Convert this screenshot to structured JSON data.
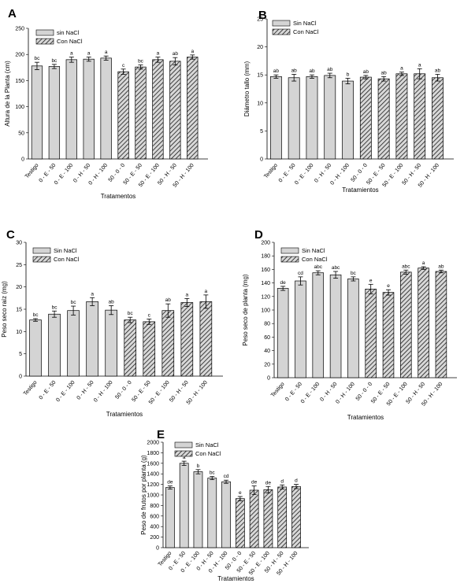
{
  "chart_data": [
    {
      "id": "A",
      "type": "bar",
      "panel_label": "A",
      "ylabel": "Altura de la Planta (cm)",
      "xlabel": "Tratamentos",
      "ylim": [
        0,
        250
      ],
      "yticks": [
        0,
        50,
        100,
        150,
        200,
        250
      ],
      "categories": [
        "Testigo",
        "0 - E - 50",
        "0 - E - 100",
        "0 - H - 50",
        "0 - H - 100",
        "50 - 0 - 0",
        "50 - E - 50",
        "50 - E - 100",
        "50 - H - 50",
        "50 - H - 100"
      ],
      "legend": [
        "sin NaCl",
        "Con NaCl"
      ],
      "series": [
        {
          "name": "sin NaCl",
          "values": [
            178,
            177,
            190,
            191,
            193,
            null,
            null,
            null,
            null,
            null
          ],
          "errors": [
            7,
            4,
            5,
            4,
            4,
            null,
            null,
            null,
            null,
            null
          ]
        },
        {
          "name": "Con NaCl",
          "values": [
            null,
            null,
            null,
            null,
            null,
            167,
            176,
            190,
            187,
            195
          ],
          "errors": [
            null,
            null,
            null,
            null,
            null,
            5,
            4,
            5,
            7,
            4
          ]
        }
      ],
      "letters": [
        "bc",
        "bc",
        "a",
        "a",
        "a",
        "c",
        "bc",
        "a",
        "ab",
        "a"
      ]
    },
    {
      "id": "B",
      "type": "bar",
      "panel_label": "B",
      "ylabel": "Diámetro tallo (mm)",
      "xlabel": "Tratamientos",
      "ylim": [
        0,
        25
      ],
      "yticks": [
        0,
        5,
        10,
        15,
        20,
        25
      ],
      "categories": [
        "Testigo",
        "0 - E - 50",
        "0 - E - 100",
        "0 - H - 50",
        "0 - H - 100",
        "50 - 0 - 0",
        "50 - E - 50",
        "50 - E - 100",
        "50 - H - 50",
        "50 - H - 100"
      ],
      "legend": [
        "Sin NaCl",
        "Con NaCl"
      ],
      "series": [
        {
          "name": "Sin NaCl",
          "values": [
            14.7,
            14.5,
            14.7,
            14.9,
            13.9,
            null,
            null,
            null,
            null,
            null
          ],
          "errors": [
            0.3,
            0.6,
            0.3,
            0.4,
            0.5,
            null,
            null,
            null,
            null,
            null
          ]
        },
        {
          "name": "Con NaCl",
          "values": [
            null,
            null,
            null,
            null,
            null,
            14.6,
            14.3,
            15.2,
            15.2,
            14.5
          ],
          "errors": [
            null,
            null,
            null,
            null,
            null,
            0.3,
            0.4,
            0.3,
            0.9,
            0.6
          ]
        }
      ],
      "letters": [
        "ab",
        "ab",
        "ab",
        "ab",
        "b",
        "ab",
        "ab",
        "a",
        "a",
        "ab"
      ]
    },
    {
      "id": "C",
      "type": "bar",
      "panel_label": "C",
      "ylabel": "Peso seco raíz (mg)",
      "xlabel": "Tratamientos",
      "ylim": [
        0,
        30
      ],
      "yticks": [
        0,
        5,
        10,
        15,
        20,
        25,
        30
      ],
      "categories": [
        "Testigo",
        "0 - E - 50",
        "0 - E - 100",
        "0 - H - 50",
        "0 - H - 100",
        "50 - 0 - 0",
        "50 - E - 50",
        "50 - E - 100",
        "50 - H - 50",
        "50 - H - 100"
      ],
      "legend": [
        "Sin NaCl",
        "Con NaCl"
      ],
      "series": [
        {
          "name": "Sin NaCl",
          "values": [
            12.6,
            13.9,
            14.7,
            16.7,
            14.8,
            null,
            null,
            null,
            null,
            null
          ],
          "errors": [
            0.3,
            0.7,
            1.0,
            0.9,
            1.0,
            null,
            null,
            null,
            null,
            null
          ]
        },
        {
          "name": "Con NaCl",
          "values": [
            null,
            null,
            null,
            null,
            null,
            12.6,
            12.2,
            14.7,
            16.5,
            16.7
          ],
          "errors": [
            null,
            null,
            null,
            null,
            null,
            0.6,
            0.6,
            1.5,
            0.9,
            1.5
          ]
        }
      ],
      "letters": [
        "bc",
        "bc",
        "bc",
        "a",
        "ab",
        "bc",
        "c",
        "ab",
        "a",
        "a"
      ]
    },
    {
      "id": "D",
      "type": "bar",
      "panel_label": "D",
      "ylabel": "Peso seco de planta (mg)",
      "xlabel": "Tratamientos",
      "ylim": [
        0,
        200
      ],
      "yticks": [
        0,
        20,
        40,
        60,
        80,
        100,
        120,
        140,
        160,
        180,
        200
      ],
      "categories": [
        "Testigo",
        "0 - E - 50",
        "0 - E - 100",
        "0 - H - 50",
        "0 - H - 100",
        "50 - 0 - 0",
        "50 - E - 50",
        "50 - E - 100",
        "50 - H - 50",
        "50 - H - 100"
      ],
      "legend": [
        "Sin NaCl",
        "Con NaCl"
      ],
      "series": [
        {
          "name": "Sin NaCl",
          "values": [
            132,
            143,
            155,
            152,
            146,
            null,
            null,
            null,
            null,
            null
          ],
          "errors": [
            3,
            6,
            3,
            5,
            3,
            null,
            null,
            null,
            null,
            null
          ]
        },
        {
          "name": "Con NaCl",
          "values": [
            null,
            null,
            null,
            null,
            null,
            131,
            126,
            156,
            162,
            157
          ],
          "errors": [
            null,
            null,
            null,
            null,
            null,
            7,
            4,
            3,
            2,
            2
          ]
        }
      ],
      "letters": [
        "de",
        "cd",
        "abc",
        "abc",
        "bc",
        "e",
        "e",
        "abc",
        "a",
        "ab"
      ]
    },
    {
      "id": "E",
      "type": "bar",
      "panel_label": "E",
      "ylabel": "Peso de frutos por planta (g)",
      "xlabel": "Tratamientos",
      "ylim": [
        0,
        2000
      ],
      "yticks": [
        0,
        200,
        400,
        600,
        800,
        1000,
        1200,
        1400,
        1600,
        1800,
        2000
      ],
      "categories": [
        "Testigo",
        "0 - E - 50",
        "0 - E - 100",
        "0 - H - 50",
        "0 - H - 100",
        "50 - 0 - 0",
        "50 - E - 50",
        "50 - E - 100",
        "50 - H - 50",
        "50 - H - 100"
      ],
      "legend": [
        "Sin NaCl",
        "Con NaCl"
      ],
      "series": [
        {
          "name": "Sin NaCl",
          "values": [
            1140,
            1600,
            1440,
            1320,
            1250,
            null,
            null,
            null,
            null,
            null
          ],
          "errors": [
            30,
            40,
            40,
            30,
            30,
            null,
            null,
            null,
            null,
            null
          ]
        },
        {
          "name": "Con NaCl",
          "values": [
            null,
            null,
            null,
            null,
            null,
            930,
            1090,
            1100,
            1150,
            1160
          ],
          "errors": [
            null,
            null,
            null,
            null,
            null,
            40,
            80,
            60,
            40,
            40
          ]
        }
      ],
      "letters": [
        "de",
        "a",
        "b",
        "bc",
        "cd",
        "e",
        "de",
        "de",
        "d",
        "d"
      ]
    }
  ],
  "colors": {
    "sin_fill": "#d4d4d4",
    "con_fill": "#c8c8c8",
    "stroke": "#000000"
  }
}
